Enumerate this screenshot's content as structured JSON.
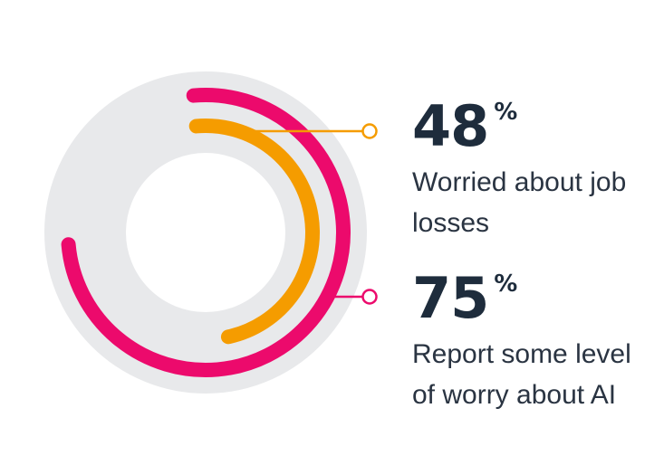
{
  "chart_data": {
    "type": "radial-bar",
    "title": "",
    "unit": "%",
    "series": [
      {
        "value": 48,
        "label": "Worried about job losses",
        "color": "#f59c00"
      },
      {
        "value": 75,
        "label": "Report some level of worry about AI",
        "color": "#ec0a6c"
      }
    ],
    "track_color": "#e8e9eb",
    "max": 100
  },
  "stats": [
    {
      "value": "48",
      "unit": "%",
      "label": "Worried about job losses"
    },
    {
      "value": "75",
      "unit": "%",
      "label": "Report some level of worry about AI"
    }
  ]
}
